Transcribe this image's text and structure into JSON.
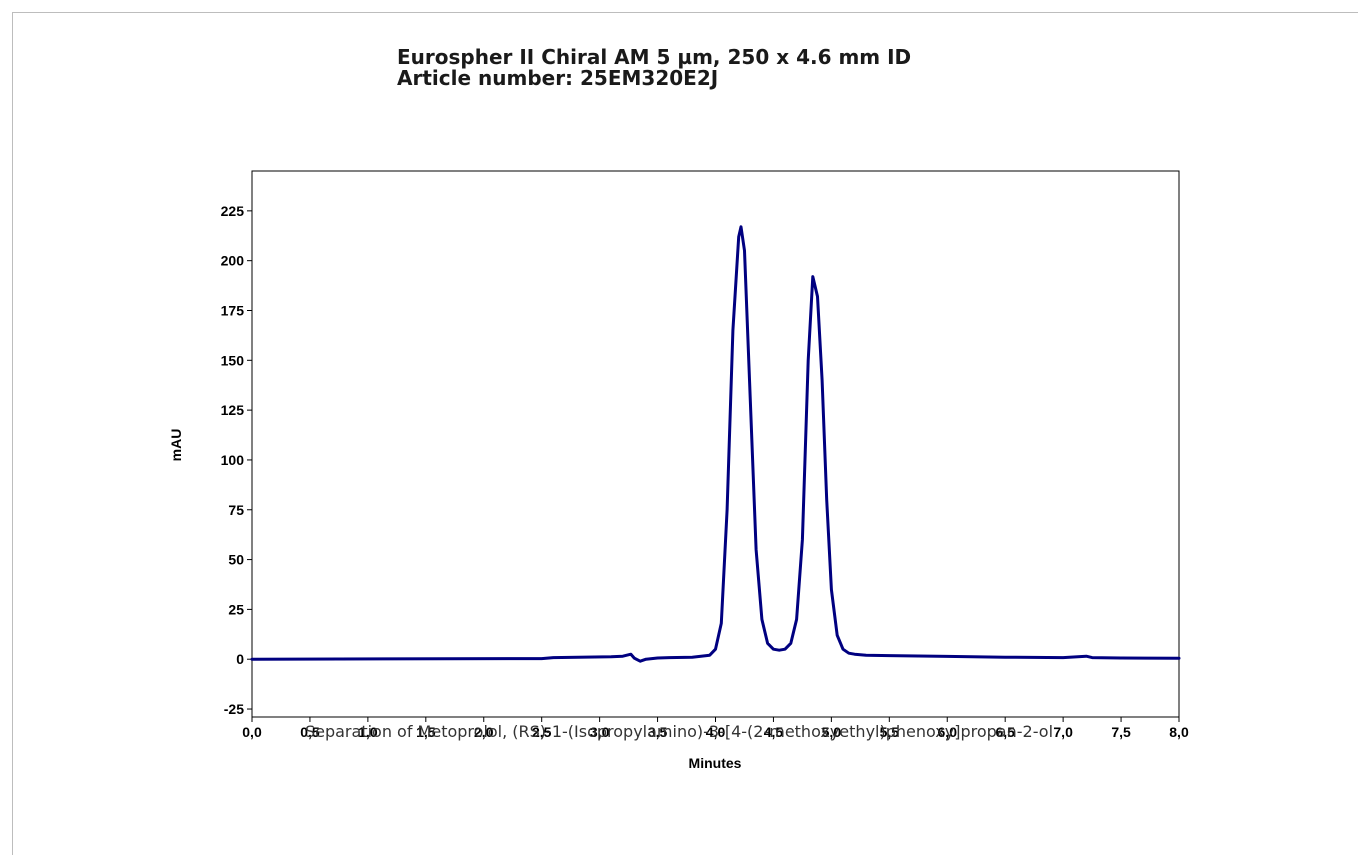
{
  "title_line1": "Eurospher II Chiral AM 5 µm, 250 x 4.6 mm ID",
  "title_line2": "Article number: 25EM320E2J",
  "caption": "Separation of Metoprolol, (RS)-1-(Isopropylamino)-3-[4-(2-methoxyethyl)phenoxy]propan-2-ol",
  "chart_data": {
    "type": "line",
    "title": "",
    "xlabel": "Minutes",
    "ylabel": "mAU",
    "xlim": [
      0,
      8
    ],
    "ylim": [
      -29,
      245
    ],
    "x_ticks": [
      0,
      0.5,
      1.0,
      1.5,
      2.0,
      2.5,
      3.0,
      3.5,
      4.0,
      4.5,
      5.0,
      5.5,
      6.0,
      6.5,
      7.0,
      7.5,
      8.0
    ],
    "x_tick_labels": [
      "0,0",
      "0,5",
      "1,0",
      "1,5",
      "2,0",
      "2,5",
      "3,0",
      "3,5",
      "4,0",
      "4,5",
      "5,0",
      "5,5",
      "6,0",
      "6,5",
      "7,0",
      "7,5",
      "8,0"
    ],
    "y_ticks": [
      -25,
      0,
      25,
      50,
      75,
      100,
      125,
      150,
      175,
      200,
      225
    ],
    "y_tick_labels": [
      "-25",
      "0",
      "25",
      "50",
      "75",
      "100",
      "125",
      "150",
      "175",
      "200",
      "225"
    ],
    "grid": false,
    "line_color": "#000080",
    "series": [
      {
        "x": [
          0.0,
          2.5,
          2.6,
          3.1,
          3.2,
          3.27,
          3.3,
          3.35,
          3.4,
          3.5,
          3.6,
          3.8,
          3.95,
          4.0,
          4.05,
          4.1,
          4.15,
          4.2,
          4.22,
          4.25,
          4.3,
          4.35,
          4.4,
          4.45,
          4.5,
          4.55,
          4.6,
          4.65,
          4.7,
          4.75,
          4.8,
          4.84,
          4.88,
          4.92,
          4.96,
          5.0,
          5.05,
          5.1,
          5.15,
          5.2,
          5.3,
          5.5,
          6.0,
          6.5,
          7.0,
          7.2,
          7.25,
          7.5,
          8.0
        ],
        "y": [
          0.0,
          0.3,
          0.8,
          1.2,
          1.5,
          2.5,
          0.5,
          -1.0,
          0.0,
          0.6,
          0.8,
          1.0,
          2.0,
          5.0,
          18.0,
          75.0,
          165.0,
          212.0,
          217.0,
          205.0,
          130.0,
          55.0,
          20.0,
          8.0,
          5.0,
          4.5,
          5.0,
          8.0,
          20.0,
          60.0,
          150.0,
          192.0,
          182.0,
          140.0,
          80.0,
          35.0,
          12.0,
          5.0,
          3.0,
          2.5,
          2.0,
          1.8,
          1.4,
          1.0,
          0.8,
          1.5,
          0.8,
          0.6,
          0.5
        ]
      }
    ]
  }
}
